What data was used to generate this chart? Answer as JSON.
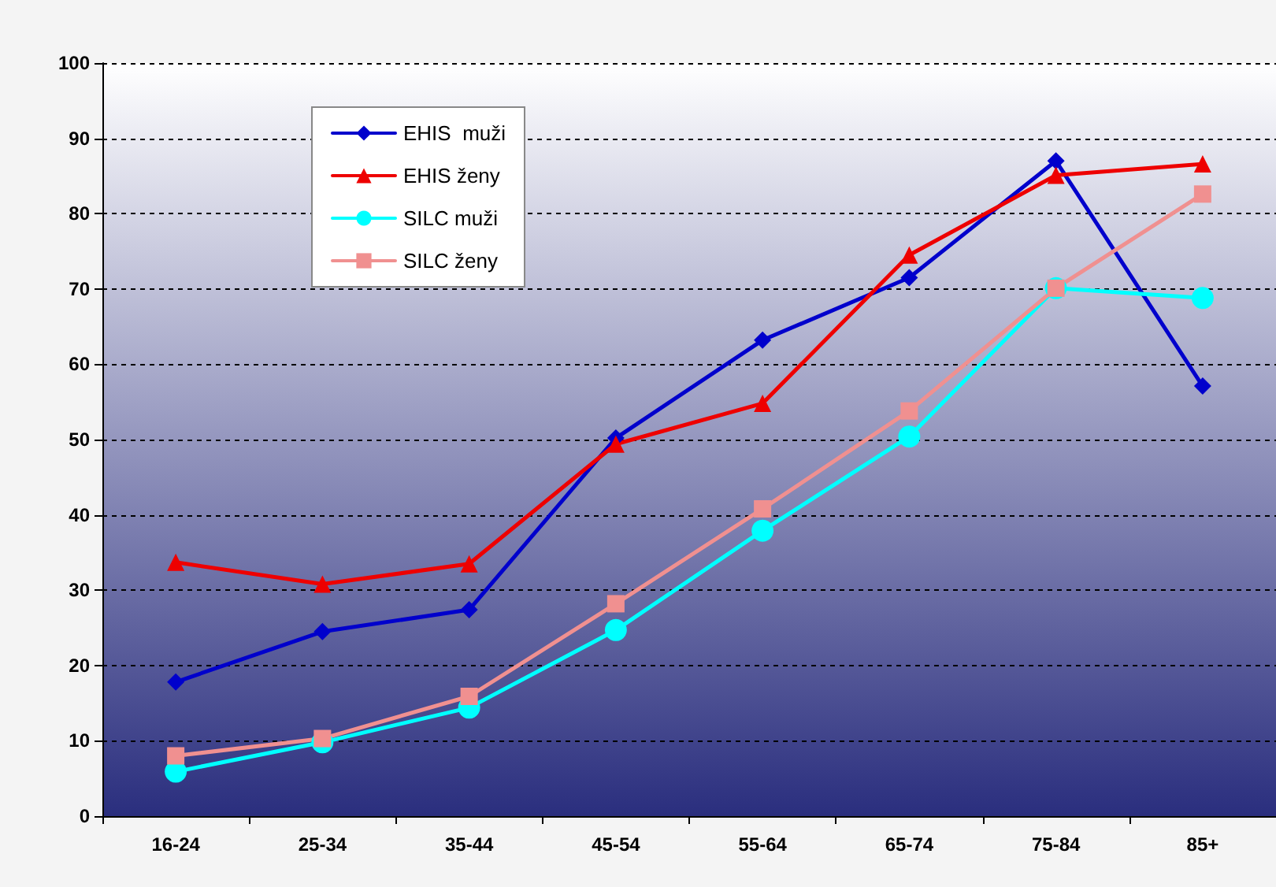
{
  "chart_data": {
    "type": "line",
    "categories": [
      "16-24",
      "25-34",
      "35-44",
      "45-54",
      "55-64",
      "65-74",
      "75-84",
      "85+"
    ],
    "series": [
      {
        "name": "EHIS  muži",
        "color": "#0000cc",
        "marker": "diamond",
        "values": [
          17.8,
          24.5,
          27.4,
          50.2,
          63.2,
          71.5,
          87.0,
          57.1
        ]
      },
      {
        "name": "EHIS ženy",
        "color": "#ee0000",
        "marker": "triangle",
        "values": [
          33.7,
          30.8,
          33.5,
          49.4,
          54.8,
          74.5,
          85.1,
          86.6
        ]
      },
      {
        "name": "SILC muži",
        "color": "#00ffff",
        "marker": "circle",
        "values": [
          5.9,
          9.8,
          14.4,
          24.7,
          37.9,
          50.4,
          70.1,
          68.8
        ]
      },
      {
        "name": "SILC ženy",
        "color": "#f09090",
        "marker": "square",
        "values": [
          8.0,
          10.3,
          15.9,
          28.2,
          40.8,
          53.8,
          70.1,
          82.6
        ]
      }
    ],
    "ylim": [
      0,
      100
    ],
    "yticks": [
      0,
      10,
      20,
      30,
      40,
      50,
      60,
      70,
      80,
      90,
      100
    ],
    "grid": "y",
    "legend": "top left",
    "line_style": "solid"
  }
}
